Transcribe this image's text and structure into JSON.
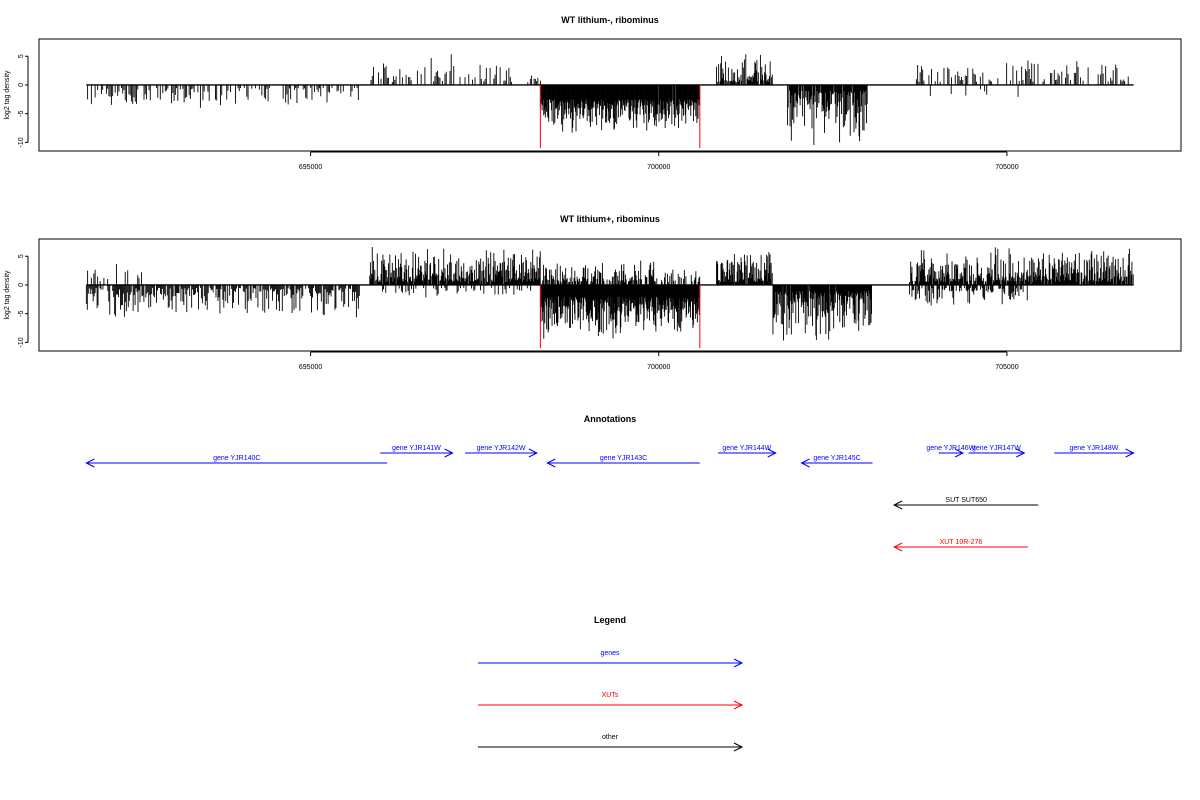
{
  "panels": [
    {
      "title": "WT lithium-, ribominus",
      "ylabel": "log2 tag density",
      "ytick_labels": [
        "-10",
        "-5",
        "0",
        "5"
      ],
      "xtick_labels": [
        "695000",
        "700000",
        "705000"
      ]
    },
    {
      "title": "WT lithium+, ribominus",
      "ylabel": "log2 tag density",
      "ytick_labels": [
        "-10",
        "-5",
        "0",
        "5"
      ],
      "xtick_labels": [
        "695000",
        "700000",
        "705000"
      ]
    }
  ],
  "annotations": {
    "title": "Annotations",
    "features": [
      {
        "label": "gene YJR140C",
        "start": 691780,
        "end": 696100,
        "strand": "-",
        "kind": "gene",
        "row": 0
      },
      {
        "label": "gene YJR141W",
        "start": 696000,
        "end": 697040,
        "strand": "+",
        "kind": "gene",
        "row": 1
      },
      {
        "label": "gene YJR142W",
        "start": 697220,
        "end": 698250,
        "strand": "+",
        "kind": "gene",
        "row": 1
      },
      {
        "label": "gene YJR143C",
        "start": 698400,
        "end": 700590,
        "strand": "-",
        "kind": "gene",
        "row": 0
      },
      {
        "label": "gene YJR144W",
        "start": 700850,
        "end": 701680,
        "strand": "+",
        "kind": "gene",
        "row": 1
      },
      {
        "label": "gene YJR145C",
        "start": 702050,
        "end": 703070,
        "strand": "-",
        "kind": "gene",
        "row": 0
      },
      {
        "label": "gene YJR146W",
        "start": 704020,
        "end": 704370,
        "strand": "+",
        "kind": "gene",
        "row": 1
      },
      {
        "label": "gene YJR147W",
        "start": 704450,
        "end": 705250,
        "strand": "+",
        "kind": "gene",
        "row": 1
      },
      {
        "label": "gene YJR148W",
        "start": 705680,
        "end": 706820,
        "strand": "+",
        "kind": "gene",
        "row": 1
      },
      {
        "label": "SUT SUT650",
        "start": 703380,
        "end": 705450,
        "strand": "-",
        "kind": "other",
        "row": 2
      },
      {
        "label": "XUT 10R-276",
        "start": 703380,
        "end": 705300,
        "strand": "-",
        "kind": "xut",
        "row": 3
      }
    ]
  },
  "legend": {
    "title": "Legend",
    "items": [
      {
        "label": "genes",
        "kind": "gene"
      },
      {
        "label": "XUTs",
        "kind": "xut"
      },
      {
        "label": "other",
        "kind": "other"
      }
    ]
  },
  "colors": {
    "gene": "#0000ff",
    "xut": "#ff0000",
    "other": "#000000",
    "bars": "#000000",
    "boundary": "#ff0000"
  },
  "chart_data": [
    {
      "type": "bar",
      "title": "WT lithium-, ribominus",
      "xlabel": "",
      "ylabel": "log2 tag density",
      "xlim": [
        691100,
        707500
      ],
      "ylim": [
        -11.5,
        8
      ],
      "xticks": [
        695000,
        700000,
        705000
      ],
      "yticks": [
        -10,
        -5,
        0,
        5
      ],
      "grid": false,
      "baseline": {
        "start": 691780,
        "end": 706820,
        "y": 0
      },
      "boundary_lines": [
        {
          "x": 698300,
          "y_min": -11,
          "y_max": 0
        },
        {
          "x": 700590,
          "y_min": -11,
          "y_max": 0
        }
      ],
      "segments": [
        {
          "start": 691780,
          "end": 695700,
          "sign": -1,
          "min": 0.5,
          "max": 4.5,
          "density": 0.55,
          "step": 18
        },
        {
          "start": 695850,
          "end": 697850,
          "sign": 1,
          "min": 0.5,
          "max": 5.5,
          "density": 0.55,
          "step": 18
        },
        {
          "start": 697850,
          "end": 698300,
          "sign": 1,
          "min": 0.5,
          "max": 3,
          "density": 0.4,
          "step": 18
        },
        {
          "start": 698300,
          "end": 700590,
          "sign": -1,
          "min": 2.5,
          "max": 9,
          "density": 0.98,
          "step": 8
        },
        {
          "start": 700830,
          "end": 701630,
          "sign": 1,
          "min": 0.5,
          "max": 6,
          "density": 0.85,
          "step": 10
        },
        {
          "start": 701850,
          "end": 703000,
          "sign": -1,
          "min": 1,
          "max": 11,
          "density": 0.9,
          "step": 9
        },
        {
          "start": 703700,
          "end": 706820,
          "sign": 1,
          "min": 0.5,
          "max": 4.5,
          "density": 0.5,
          "step": 18
        },
        {
          "start": 703900,
          "end": 705400,
          "sign": -1,
          "min": 0.5,
          "max": 2.5,
          "density": 0.12,
          "step": 30
        }
      ]
    },
    {
      "type": "bar",
      "title": "WT lithium+, ribominus",
      "xlabel": "",
      "ylabel": "log2 tag density",
      "xlim": [
        691100,
        707500
      ],
      "ylim": [
        -11.5,
        8
      ],
      "xticks": [
        695000,
        700000,
        705000
      ],
      "yticks": [
        -10,
        -5,
        0,
        5
      ],
      "grid": false,
      "baseline": {
        "start": 691780,
        "end": 706820,
        "y": 0
      },
      "boundary_lines": [
        {
          "x": 698300,
          "y_min": -11,
          "y_max": 0
        },
        {
          "x": 700590,
          "y_min": -11,
          "y_max": 0
        }
      ],
      "segments": [
        {
          "start": 691780,
          "end": 692600,
          "sign": 1,
          "min": 0.5,
          "max": 4,
          "density": 0.35,
          "step": 18
        },
        {
          "start": 691780,
          "end": 695700,
          "sign": -1,
          "min": 0.5,
          "max": 6,
          "density": 0.85,
          "step": 14
        },
        {
          "start": 695850,
          "end": 698300,
          "sign": 1,
          "min": 0.5,
          "max": 7,
          "density": 0.92,
          "step": 9
        },
        {
          "start": 696000,
          "end": 698200,
          "sign": -1,
          "min": 0.5,
          "max": 2.5,
          "density": 0.3,
          "step": 16
        },
        {
          "start": 698300,
          "end": 700590,
          "sign": -1,
          "min": 2,
          "max": 10,
          "density": 1.0,
          "step": 7
        },
        {
          "start": 698300,
          "end": 700590,
          "sign": 1,
          "min": 0.5,
          "max": 4.5,
          "density": 0.6,
          "step": 11
        },
        {
          "start": 700830,
          "end": 701630,
          "sign": 1,
          "min": 0.5,
          "max": 6.5,
          "density": 0.95,
          "step": 8
        },
        {
          "start": 701640,
          "end": 703060,
          "sign": -1,
          "min": 1,
          "max": 11,
          "density": 0.92,
          "step": 8
        },
        {
          "start": 703600,
          "end": 706820,
          "sign": 1,
          "min": 0.5,
          "max": 7,
          "density": 0.9,
          "step": 9
        },
        {
          "start": 703600,
          "end": 705300,
          "sign": -1,
          "min": 0.5,
          "max": 4,
          "density": 0.6,
          "step": 12
        }
      ]
    }
  ]
}
